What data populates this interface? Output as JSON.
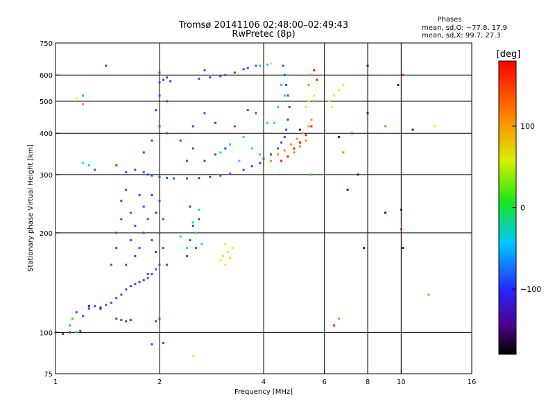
{
  "chart_data": {
    "type": "scatter",
    "title": "Tromsø 20141106 02:48:00–02:49:43",
    "subtitle": "RwPretec (8p)",
    "stats": {
      "heading": "Phases",
      "line_o": "mean, sd,O: −77.8, 17.9",
      "line_x": "mean, sd,X:  99.7, 27.3"
    },
    "xlabel": "Frequency [MHz]",
    "ylabel": "Stationary phase Virtual Height [km]",
    "x_scale": "log",
    "y_scale": "log",
    "xlim": [
      1,
      16
    ],
    "ylim": [
      75,
      750
    ],
    "x_ticks": [
      1,
      2,
      4,
      6,
      8,
      10,
      16
    ],
    "x_tick_labels": [
      "1",
      "2",
      "4",
      "6",
      "8",
      "10",
      "16"
    ],
    "y_ticks": [
      75,
      100,
      200,
      300,
      400,
      500,
      600,
      750
    ],
    "y_tick_labels": [
      "75",
      "100",
      "200",
      "300",
      "400",
      "500",
      "600",
      "750"
    ],
    "x_gridlines": [
      2,
      4,
      6,
      8,
      10
    ],
    "y_gridlines": [
      100,
      200,
      300,
      400,
      500,
      600
    ],
    "grid": true,
    "colorbar": {
      "label": "[deg]",
      "range": [
        -180,
        180
      ],
      "ticks": [
        100,
        0,
        -100
      ],
      "tick_labels": [
        "100",
        "0",
        "−100"
      ],
      "colormap": "rainbow (black–purple–blue–cyan–green–yellow–red)"
    },
    "series": [
      {
        "color": "#2a4dff",
        "phase_deg": -100,
        "points": [
          [
            1.0,
            100
          ],
          [
            1.05,
            99
          ],
          [
            1.1,
            100
          ],
          [
            1.18,
            101
          ],
          [
            1.25,
            118
          ],
          [
            1.3,
            120
          ],
          [
            1.35,
            119
          ],
          [
            1.4,
            121
          ],
          [
            1.45,
            123
          ],
          [
            1.5,
            127
          ],
          [
            1.55,
            130
          ],
          [
            1.6,
            135
          ],
          [
            1.65,
            138
          ],
          [
            1.7,
            140
          ],
          [
            1.75,
            142
          ],
          [
            1.8,
            144
          ],
          [
            1.85,
            146
          ],
          [
            1.9,
            150
          ],
          [
            1.95,
            155
          ],
          [
            2.0,
            160
          ],
          [
            1.5,
            110
          ],
          [
            1.55,
            109
          ],
          [
            1.6,
            108
          ],
          [
            1.65,
            109
          ],
          [
            1.95,
            108
          ],
          [
            2.0,
            110
          ],
          [
            1.45,
            160
          ],
          [
            1.5,
            180
          ],
          [
            1.5,
            200
          ],
          [
            1.55,
            220
          ],
          [
            1.55,
            250
          ],
          [
            1.6,
            270
          ],
          [
            1.6,
            160
          ],
          [
            1.65,
            190
          ],
          [
            1.65,
            230
          ],
          [
            1.7,
            170
          ],
          [
            1.7,
            210
          ],
          [
            1.75,
            260
          ],
          [
            1.75,
            180
          ],
          [
            1.8,
            200
          ],
          [
            1.8,
            240
          ],
          [
            1.85,
            150
          ],
          [
            1.85,
            220
          ],
          [
            1.9,
            190
          ],
          [
            1.9,
            260
          ],
          [
            1.95,
            175
          ],
          [
            1.95,
            230
          ],
          [
            2.0,
            200
          ],
          [
            2.0,
            250
          ],
          [
            2.05,
            180
          ],
          [
            2.05,
            220
          ],
          [
            2.1,
            160
          ],
          [
            1.6,
            305
          ],
          [
            1.7,
            310
          ],
          [
            1.8,
            305
          ],
          [
            1.85,
            300
          ],
          [
            1.9,
            298
          ],
          [
            2.0,
            295
          ],
          [
            2.1,
            293
          ],
          [
            2.2,
            292
          ],
          [
            2.4,
            292
          ],
          [
            2.6,
            293
          ],
          [
            2.8,
            295
          ],
          [
            3.0,
            298
          ],
          [
            3.2,
            302
          ],
          [
            3.5,
            310
          ],
          [
            3.7,
            318
          ],
          [
            3.9,
            325
          ],
          [
            4.0,
            335
          ],
          [
            4.2,
            345
          ],
          [
            4.4,
            360
          ],
          [
            4.5,
            375
          ],
          [
            4.6,
            390
          ],
          [
            4.65,
            410
          ],
          [
            4.7,
            440
          ],
          [
            4.75,
            480
          ],
          [
            4.7,
            520
          ],
          [
            4.65,
            560
          ],
          [
            4.6,
            600
          ],
          [
            4.55,
            640
          ],
          [
            1.8,
            350
          ],
          [
            1.9,
            380
          ],
          [
            2.0,
            420
          ],
          [
            2.1,
            400
          ],
          [
            1.95,
            470
          ],
          [
            2.0,
            520
          ],
          [
            2.1,
            500
          ],
          [
            2.0,
            570
          ],
          [
            2.05,
            580
          ],
          [
            2.1,
            590
          ],
          [
            2.15,
            575
          ],
          [
            2.0,
            610
          ],
          [
            2.3,
            380
          ],
          [
            2.5,
            360
          ],
          [
            2.7,
            330
          ],
          [
            2.9,
            345
          ],
          [
            3.1,
            360
          ],
          [
            2.4,
            330
          ],
          [
            2.5,
            420
          ],
          [
            2.7,
            460
          ],
          [
            2.9,
            430
          ],
          [
            3.3,
            420
          ],
          [
            3.6,
            470
          ],
          [
            3.8,
            460
          ],
          [
            2.6,
            585
          ],
          [
            2.8,
            590
          ],
          [
            3.0,
            595
          ],
          [
            3.1,
            600
          ],
          [
            3.3,
            610
          ],
          [
            3.5,
            625
          ],
          [
            3.6,
            630
          ],
          [
            3.8,
            640
          ],
          [
            2.7,
            620
          ],
          [
            1.4,
            640
          ],
          [
            2.4,
            170
          ],
          [
            2.45,
            190
          ],
          [
            2.5,
            210
          ],
          [
            2.55,
            180
          ],
          [
            2.6,
            220
          ],
          [
            2.45,
            240
          ],
          [
            1.9,
            92
          ],
          [
            2.05,
            93
          ],
          [
            1.3,
            310
          ],
          [
            1.15,
            115
          ],
          [
            1.2,
            112
          ]
        ]
      },
      {
        "color": "#00d8ff",
        "phase_deg": -50,
        "points": [
          [
            2.3,
            195
          ],
          [
            2.4,
            180
          ],
          [
            2.5,
            215
          ],
          [
            2.55,
            200
          ],
          [
            2.6,
            235
          ],
          [
            2.65,
            185
          ],
          [
            3.0,
            350
          ],
          [
            3.2,
            370
          ],
          [
            3.4,
            330
          ],
          [
            3.5,
            390
          ],
          [
            3.7,
            360
          ],
          [
            3.9,
            345
          ],
          [
            4.3,
            430
          ],
          [
            4.4,
            480
          ],
          [
            4.5,
            560
          ],
          [
            4.7,
            600
          ],
          [
            4.6,
            520
          ],
          [
            3.9,
            640
          ],
          [
            4.1,
            645
          ],
          [
            1.25,
            320
          ],
          [
            1.2,
            325
          ],
          [
            4.1,
            430
          ]
        ]
      },
      {
        "color": "#19e619",
        "phase_deg": 0,
        "points": [
          [
            1.1,
            105
          ],
          [
            1.15,
            100
          ],
          [
            1.12,
            110
          ],
          [
            1.2,
            520
          ],
          [
            9.0,
            420
          ],
          [
            5.5,
            300
          ]
        ]
      },
      {
        "color": "#f0f000",
        "phase_deg": 90,
        "points": [
          [
            3.0,
            165
          ],
          [
            3.05,
            170
          ],
          [
            3.1,
            160
          ],
          [
            3.15,
            175
          ],
          [
            3.2,
            168
          ],
          [
            3.25,
            180
          ],
          [
            3.1,
            185
          ],
          [
            5.3,
            480
          ],
          [
            5.4,
            500
          ],
          [
            5.6,
            520
          ],
          [
            6.2,
            500
          ],
          [
            6.4,
            520
          ],
          [
            6.6,
            540
          ],
          [
            6.8,
            560
          ],
          [
            6.3,
            480
          ],
          [
            4.2,
            650
          ],
          [
            12.5,
            420
          ],
          [
            1.15,
            510
          ],
          [
            2.5,
            85
          ]
        ]
      },
      {
        "color": "#ff8c00",
        "phase_deg": 130,
        "points": [
          [
            4.2,
            330
          ],
          [
            4.4,
            345
          ],
          [
            4.6,
            355
          ],
          [
            4.8,
            370
          ],
          [
            5.0,
            385
          ],
          [
            5.2,
            400
          ],
          [
            5.4,
            420
          ],
          [
            4.9,
            350
          ],
          [
            5.1,
            365
          ],
          [
            5.3,
            380
          ],
          [
            5.5,
            440
          ],
          [
            5.6,
            500
          ],
          [
            5.5,
            600
          ],
          [
            5.4,
            560
          ],
          [
            6.8,
            350
          ],
          [
            6.6,
            110
          ],
          [
            12.0,
            130
          ],
          [
            1.2,
            490
          ]
        ]
      },
      {
        "color": "#ff1a00",
        "phase_deg": 160,
        "points": [
          [
            4.5,
            330
          ],
          [
            4.7,
            340
          ],
          [
            4.9,
            360
          ],
          [
            5.1,
            375
          ],
          [
            5.3,
            395
          ],
          [
            5.5,
            420
          ],
          [
            5.6,
            620
          ],
          [
            5.7,
            580
          ],
          [
            6.4,
            105
          ],
          [
            10.0,
            205
          ],
          [
            10.1,
            600
          ],
          [
            7.2,
            400
          ],
          [
            1.5,
            320
          ]
        ]
      },
      {
        "color": "#4b0082",
        "phase_deg": -160,
        "points": [
          [
            1.25,
            120
          ],
          [
            1.35,
            118
          ],
          [
            6.6,
            390
          ],
          [
            7.5,
            300
          ],
          [
            7.0,
            270
          ],
          [
            8.0,
            640
          ],
          [
            8.0,
            460
          ],
          [
            9.0,
            230
          ],
          [
            9.8,
            560
          ],
          [
            10.8,
            410
          ],
          [
            10.1,
            180
          ],
          [
            5.1,
            410
          ],
          [
            7.8,
            180
          ],
          [
            10.0,
            235
          ]
        ]
      }
    ]
  }
}
